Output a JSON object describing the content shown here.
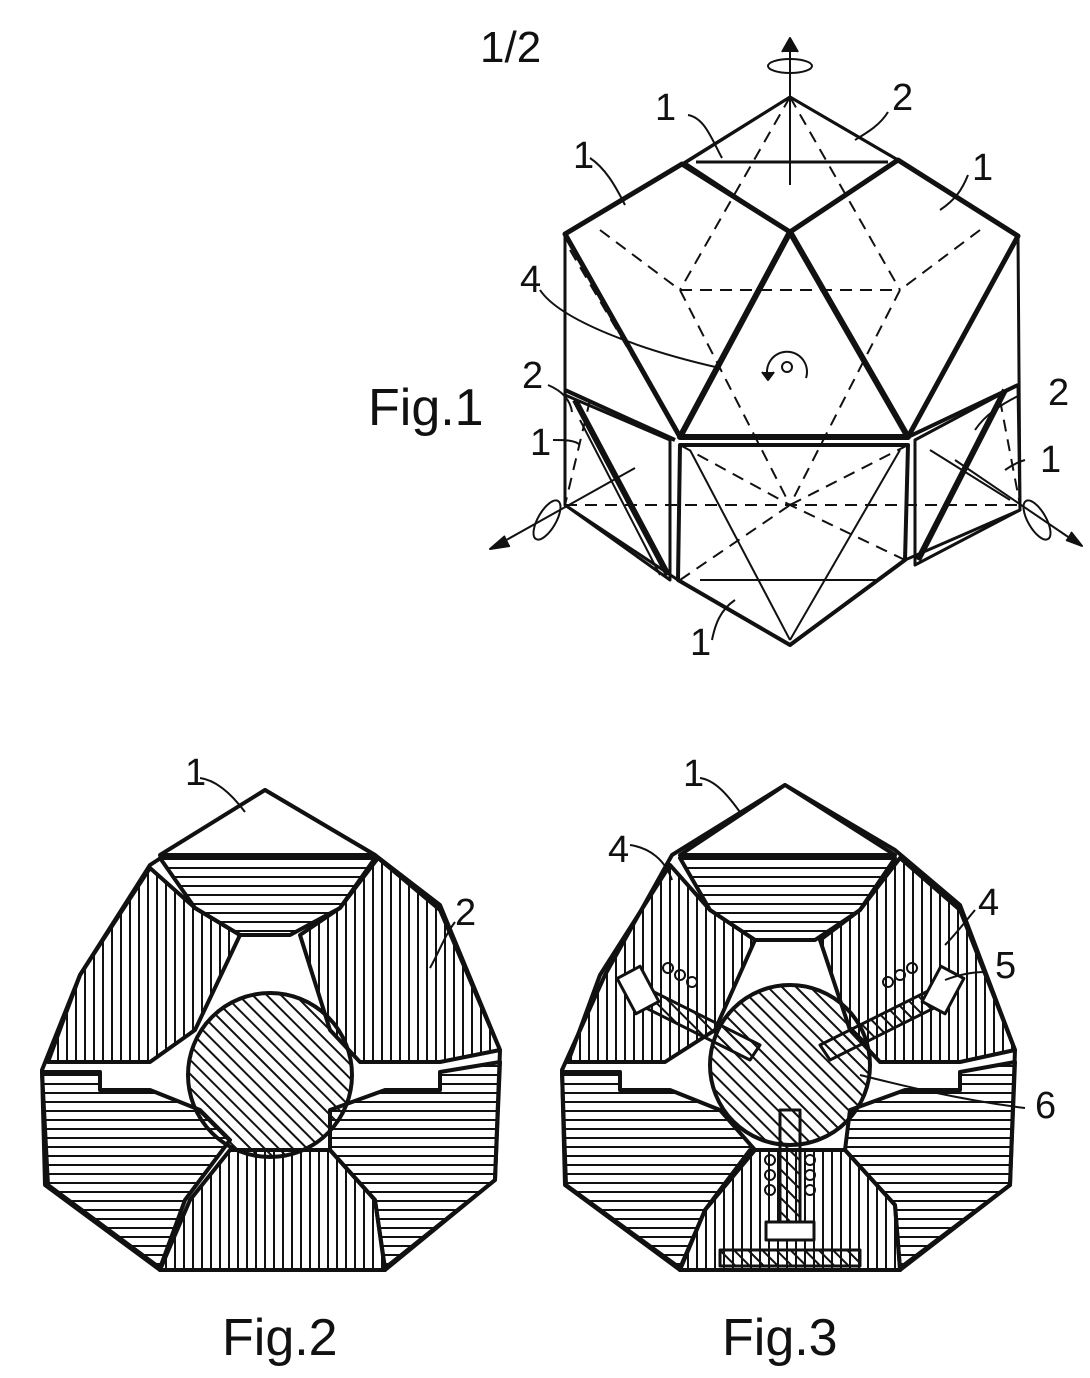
{
  "page_number": "1/2",
  "figures": [
    {
      "caption": "Fig.1",
      "labels": [
        "1",
        "2",
        "1",
        "1",
        "4",
        "2",
        "1",
        "2",
        "1",
        "1"
      ]
    },
    {
      "caption": "Fig.2",
      "labels": [
        "1",
        "2"
      ]
    },
    {
      "caption": "Fig.3",
      "labels": [
        "1",
        "4",
        "4",
        "5",
        "6"
      ]
    }
  ]
}
